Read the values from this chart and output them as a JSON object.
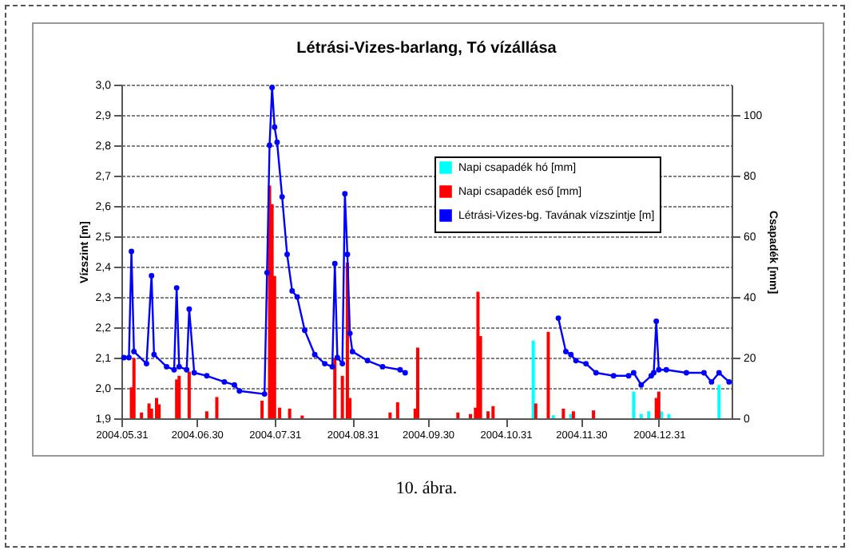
{
  "chart_data": {
    "type": "line",
    "title": "Létrási-Vizes-barlang, Tó vízállása",
    "ylabel": "Vízszint [m]",
    "y2label": "Csapadék [mm]",
    "annotations": [
      "10. ábra."
    ],
    "xlim": [
      "2004-05-31",
      "2005-01-29"
    ],
    "xticks": [
      {
        "value": "2004-05-31",
        "label": "2004.05.31"
      },
      {
        "value": "2004-06-30",
        "label": "2004.06.30"
      },
      {
        "value": "2004-07-31",
        "label": "2004.07.31"
      },
      {
        "value": "2004-08-31",
        "label": "2004.08.31"
      },
      {
        "value": "2004-09-30",
        "label": "2004.09.30"
      },
      {
        "value": "2004-10-31",
        "label": "2004.10.31"
      },
      {
        "value": "2004-11-30",
        "label": "2004.11.30"
      },
      {
        "value": "2004-12-31",
        "label": "2004.12.31"
      }
    ],
    "ylim": [
      1.9,
      3.0
    ],
    "yticks": [
      {
        "value": 1.9,
        "label": "1,9"
      },
      {
        "value": 2.0,
        "label": "2,0"
      },
      {
        "value": 2.1,
        "label": "2,1"
      },
      {
        "value": 2.2,
        "label": "2,2"
      },
      {
        "value": 2.3,
        "label": "2,3"
      },
      {
        "value": 2.4,
        "label": "2,4"
      },
      {
        "value": 2.5,
        "label": "2,5"
      },
      {
        "value": 2.6,
        "label": "2,6"
      },
      {
        "value": 2.7,
        "label": "2,7"
      },
      {
        "value": 2.8,
        "label": "2,8"
      },
      {
        "value": 2.9,
        "label": "2,9"
      },
      {
        "value": 3.0,
        "label": "3,0"
      }
    ],
    "y2lim": [
      0,
      110
    ],
    "y2ticks": [
      0,
      20,
      40,
      60,
      80,
      100
    ],
    "grid": "y",
    "legend": "top right",
    "marker": "circle",
    "line_style": "solid",
    "series": [
      {
        "name": "Napi csapadék hó [mm]",
        "type": "bar",
        "axis": "y2",
        "color": "#00ffff",
        "x": [
          "2004-11-11",
          "2004-11-19",
          "2004-11-26",
          "2004-12-21",
          "2004-12-24",
          "2004-12-27",
          "2005-01-01",
          "2005-01-04",
          "2005-01-24"
        ],
        "values": [
          25.6,
          1.0,
          1.4,
          8.8,
          1.4,
          2.3,
          2.3,
          1.4,
          11.0
        ]
      },
      {
        "name": "Napi csapadék eső [mm]",
        "type": "bar",
        "axis": "y2",
        "color": "#ff0000",
        "x": [
          "2004-06-04",
          "2004-06-05",
          "2004-06-08",
          "2004-06-11",
          "2004-06-12",
          "2004-06-14",
          "2004-06-15",
          "2004-06-22",
          "2004-06-23",
          "2004-06-27",
          "2004-07-04",
          "2004-07-08",
          "2004-07-26",
          "2004-07-29",
          "2004-07-30",
          "2004-07-31",
          "2004-08-02",
          "2004-08-06",
          "2004-08-11",
          "2004-08-24",
          "2004-08-27",
          "2004-08-29",
          "2004-08-30",
          "2004-09-15",
          "2004-09-18",
          "2004-09-25",
          "2004-09-26",
          "2004-10-12",
          "2004-10-17",
          "2004-10-19",
          "2004-10-20",
          "2004-10-21",
          "2004-10-24",
          "2004-10-26",
          "2004-11-12",
          "2004-11-17",
          "2004-11-23",
          "2004-11-27",
          "2004-12-05",
          "2004-12-30",
          "2004-12-31"
        ],
        "values": [
          10.2,
          19.8,
          1.9,
          4.9,
          3.2,
          6.7,
          4.6,
          12.8,
          14.0,
          15.4,
          2.3,
          7.0,
          5.8,
          76.7,
          70.6,
          46.9,
          3.5,
          3.2,
          0.9,
          19.8,
          14.0,
          51.3,
          6.7,
          1.9,
          5.3,
          3.2,
          23.3,
          1.9,
          1.4,
          3.5,
          41.7,
          27.1,
          2.3,
          4.0,
          4.9,
          28.5,
          3.2,
          2.3,
          2.6,
          6.7,
          8.8
        ]
      },
      {
        "name": "Létrási-Vizes-bg. Tavának vízszintje [m]",
        "color": "#0000ff",
        "x": [
          "2004-06-01",
          "2004-06-03",
          "2004-06-04",
          "2004-06-05",
          "2004-06-10",
          "2004-06-12",
          "2004-06-13",
          "2004-06-18",
          "2004-06-21",
          "2004-06-22",
          "2004-06-23",
          "2004-06-26",
          "2004-06-27",
          "2004-06-29",
          "2004-07-04",
          "2004-07-11",
          "2004-07-15",
          "2004-07-17",
          "2004-07-27",
          "2004-07-28",
          "2004-07-29",
          "2004-07-30",
          "2004-07-31",
          "2004-08-01",
          "2004-08-03",
          "2004-08-05",
          "2004-08-07",
          "2004-08-09",
          "2004-08-12",
          "2004-08-16",
          "2004-08-20",
          "2004-08-23",
          "2004-08-24",
          "2004-08-25",
          "2004-08-27",
          "2004-08-28",
          "2004-08-29",
          "2004-08-30",
          "2004-08-31",
          "2004-09-06",
          "2004-09-12",
          "2004-09-19",
          "2004-09-21",
          "2004-10-18",
          "2004-11-21",
          "2004-11-24",
          "2004-11-26",
          "2004-11-28",
          "2004-12-02",
          "2004-12-06",
          "2004-12-13",
          "2004-12-19",
          "2004-12-21",
          "2004-12-24",
          "2004-12-28",
          "2004-12-29",
          "2004-12-30",
          "2004-12-31",
          "2005-01-03",
          "2005-01-11",
          "2005-01-18",
          "2005-01-21",
          "2005-01-24",
          "2005-01-28"
        ],
        "values": [
          2.1,
          2.1,
          2.45,
          2.12,
          2.08,
          2.37,
          2.11,
          2.07,
          2.06,
          2.33,
          2.07,
          2.06,
          2.26,
          2.05,
          2.04,
          2.02,
          2.01,
          1.99,
          1.98,
          2.38,
          2.8,
          2.99,
          2.86,
          2.81,
          2.63,
          2.44,
          2.32,
          2.3,
          2.19,
          2.11,
          2.08,
          2.07,
          2.41,
          2.1,
          2.08,
          2.64,
          2.44,
          2.18,
          2.12,
          2.09,
          2.07,
          2.06,
          2.05,
          null,
          2.23,
          2.12,
          2.11,
          2.09,
          2.08,
          2.05,
          2.04,
          2.04,
          2.05,
          2.01,
          2.04,
          2.05,
          2.22,
          2.06,
          2.06,
          2.05,
          2.05,
          2.02,
          2.05,
          2.02
        ]
      }
    ]
  }
}
